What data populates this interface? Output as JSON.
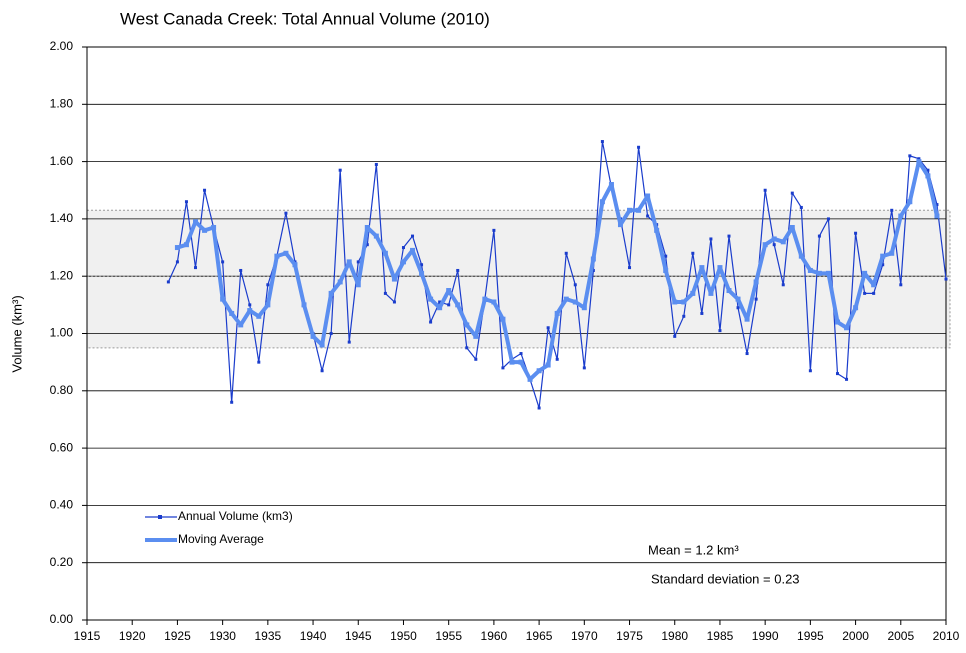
{
  "chart_data": {
    "type": "line",
    "title": "West Canada Creek: Total Annual Volume (2010)",
    "y_label": "Volume (km³)",
    "annotations": [
      "Mean = 1.2 km³",
      "Standard deviation = 0.23"
    ],
    "x": [
      1924,
      1925,
      1926,
      1927,
      1928,
      1929,
      1930,
      1931,
      1932,
      1933,
      1934,
      1935,
      1936,
      1937,
      1938,
      1939,
      1940,
      1941,
      1942,
      1943,
      1944,
      1945,
      1946,
      1947,
      1948,
      1949,
      1950,
      1951,
      1952,
      1953,
      1954,
      1955,
      1956,
      1957,
      1958,
      1959,
      1960,
      1961,
      1962,
      1963,
      1964,
      1965,
      1966,
      1967,
      1968,
      1969,
      1970,
      1971,
      1972,
      1973,
      1974,
      1975,
      1976,
      1977,
      1978,
      1979,
      1980,
      1981,
      1982,
      1983,
      1984,
      1985,
      1986,
      1987,
      1988,
      1989,
      1990,
      1991,
      1992,
      1993,
      1994,
      1995,
      1996,
      1997,
      1998,
      1999,
      2000,
      2001,
      2002,
      2003,
      2004,
      2005,
      2006,
      2007,
      2008,
      2009,
      2010
    ],
    "series": [
      {
        "name": "Annual Volume (km3)",
        "color": "#1a3ccc",
        "values": [
          1.18,
          1.25,
          1.46,
          1.23,
          1.5,
          1.37,
          1.25,
          0.76,
          1.22,
          1.1,
          0.9,
          1.17,
          1.27,
          1.42,
          1.25,
          1.1,
          1.0,
          0.87,
          1.0,
          1.57,
          0.97,
          1.25,
          1.31,
          1.59,
          1.14,
          1.11,
          1.3,
          1.34,
          1.24,
          1.04,
          1.11,
          1.1,
          1.22,
          0.95,
          0.91,
          1.12,
          1.36,
          0.88,
          0.91,
          0.93,
          0.84,
          0.74,
          1.02,
          0.91,
          1.28,
          1.17,
          0.88,
          1.22,
          1.67,
          1.51,
          1.4,
          1.23,
          1.65,
          1.41,
          1.38,
          1.27,
          0.99,
          1.06,
          1.28,
          1.07,
          1.33,
          1.01,
          1.34,
          1.09,
          0.93,
          1.12,
          1.5,
          1.31,
          1.17,
          1.49,
          1.44,
          0.87,
          1.34,
          1.4,
          0.86,
          0.84,
          1.35,
          1.14,
          1.14,
          1.24,
          1.43,
          1.17,
          1.62,
          1.61,
          1.57,
          1.45,
          1.19
        ]
      },
      {
        "name": "Moving Average",
        "color": "#5b8ef0",
        "values": [
          null,
          1.3,
          1.31,
          1.39,
          1.36,
          1.37,
          1.12,
          1.07,
          1.03,
          1.08,
          1.06,
          1.1,
          1.27,
          1.28,
          1.24,
          1.1,
          0.99,
          0.96,
          1.14,
          1.18,
          1.25,
          1.17,
          1.37,
          1.34,
          1.28,
          1.19,
          1.25,
          1.29,
          1.21,
          1.12,
          1.09,
          1.15,
          1.1,
          1.03,
          0.99,
          1.12,
          1.11,
          1.05,
          0.9,
          0.9,
          0.84,
          0.87,
          0.89,
          1.07,
          1.12,
          1.11,
          1.09,
          1.26,
          1.46,
          1.52,
          1.38,
          1.43,
          1.43,
          1.48,
          1.36,
          1.22,
          1.11,
          1.11,
          1.14,
          1.23,
          1.14,
          1.23,
          1.15,
          1.12,
          1.05,
          1.18,
          1.31,
          1.33,
          1.32,
          1.37,
          1.27,
          1.22,
          1.21,
          1.21,
          1.04,
          1.02,
          1.09,
          1.21,
          1.17,
          1.27,
          1.28,
          1.41,
          1.46,
          1.6,
          1.55,
          1.41,
          null
        ]
      }
    ],
    "band": [
      0.95,
      1.43
    ],
    "mean_line": 1.2,
    "xlim": [
      1915,
      2010
    ],
    "xticks": [
      1915,
      1920,
      1925,
      1930,
      1935,
      1940,
      1945,
      1950,
      1955,
      1960,
      1965,
      1970,
      1975,
      1980,
      1985,
      1990,
      1995,
      2000,
      2005,
      2010
    ],
    "ylim": [
      0,
      2
    ],
    "yticks": [
      {
        "value": 0,
        "label": "0.00"
      },
      {
        "value": 0.2,
        "label": "0.20"
      },
      {
        "value": 0.4,
        "label": "0.40"
      },
      {
        "value": 0.6,
        "label": "0.60"
      },
      {
        "value": 0.8,
        "label": "0.80"
      },
      {
        "value": 1,
        "label": "1.00"
      },
      {
        "value": 1.2,
        "label": "1.20"
      },
      {
        "value": 1.4,
        "label": "1.40"
      },
      {
        "value": 1.6,
        "label": "1.60"
      },
      {
        "value": 1.8,
        "label": "1.80"
      },
      {
        "value": 2,
        "label": "2.00"
      }
    ],
    "grid": true
  }
}
